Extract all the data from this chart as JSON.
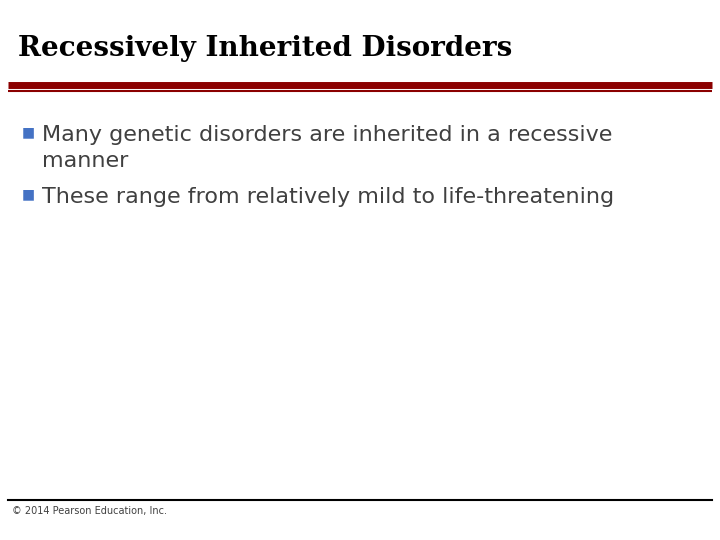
{
  "title": "Recessively Inherited Disorders",
  "title_color": "#000000",
  "title_fontsize": 20,
  "title_bold": true,
  "divider_color_top": "#8B0000",
  "divider_color_bottom": "#000000",
  "bullet_color": "#4472C4",
  "bullet_char": "■",
  "bullets": [
    "Many genetic disorders are inherited in a recessive\nmanner",
    "These range from relatively mild to life-threatening"
  ],
  "bullet_fontsize": 16,
  "bullet_text_color": "#404040",
  "footer_text": "© 2014 Pearson Education, Inc.",
  "footer_fontsize": 7,
  "footer_color": "#404040",
  "background_color": "#ffffff"
}
